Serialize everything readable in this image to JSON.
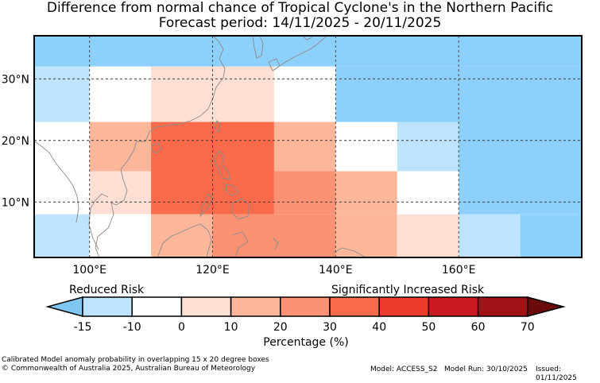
{
  "title": {
    "line1": "Difference from normal chance of Tropical Cyclone's in the Northern Pacific",
    "line2": "Forecast period: 14/11/2025 - 20/11/2025"
  },
  "map": {
    "region": "Northern Pacific",
    "lon_range": [
      91,
      180
    ],
    "lat_range": [
      1,
      37
    ],
    "lon_ticks": [
      {
        "value": 100,
        "label": "100°E"
      },
      {
        "value": 120,
        "label": "120°E"
      },
      {
        "value": 140,
        "label": "140°E"
      },
      {
        "value": 160,
        "label": "160°E"
      }
    ],
    "lat_ticks": [
      {
        "value": 30,
        "label": "30°N"
      },
      {
        "value": 20,
        "label": "20°N"
      },
      {
        "value": 10,
        "label": "10°N"
      }
    ],
    "anomaly_boxes": [
      {
        "lon": [
          91,
          180
        ],
        "lat": [
          32,
          37
        ],
        "category": "-25"
      },
      {
        "lon": [
          91,
          100
        ],
        "lat": [
          23,
          32
        ],
        "category": "-15"
      },
      {
        "lon": [
          100,
          110
        ],
        "lat": [
          23,
          32
        ],
        "category": "0"
      },
      {
        "lon": [
          110,
          130
        ],
        "lat": [
          23,
          32
        ],
        "category": "0-10"
      },
      {
        "lon": [
          130,
          140
        ],
        "lat": [
          23,
          32
        ],
        "category": "0"
      },
      {
        "lon": [
          140,
          180
        ],
        "lat": [
          23,
          32
        ],
        "category": "-25"
      },
      {
        "lon": [
          91,
          100
        ],
        "lat": [
          8,
          23
        ],
        "category": "0"
      },
      {
        "lon": [
          100,
          110
        ],
        "lat": [
          15,
          23
        ],
        "category": "10-20"
      },
      {
        "lon": [
          100,
          110
        ],
        "lat": [
          8,
          15
        ],
        "category": "0-10"
      },
      {
        "lon": [
          110,
          130
        ],
        "lat": [
          8,
          23
        ],
        "category": "30-40"
      },
      {
        "lon": [
          130,
          140
        ],
        "lat": [
          15,
          23
        ],
        "category": "10-20"
      },
      {
        "lon": [
          130,
          140
        ],
        "lat": [
          8,
          15
        ],
        "category": "20-30"
      },
      {
        "lon": [
          140,
          150
        ],
        "lat": [
          15,
          23
        ],
        "category": "0"
      },
      {
        "lon": [
          140,
          150
        ],
        "lat": [
          8,
          15
        ],
        "category": "10-20"
      },
      {
        "lon": [
          150,
          160
        ],
        "lat": [
          15,
          23
        ],
        "category": "-15"
      },
      {
        "lon": [
          150,
          160
        ],
        "lat": [
          8,
          15
        ],
        "category": "0"
      },
      {
        "lon": [
          160,
          180
        ],
        "lat": [
          8,
          23
        ],
        "category": "-25"
      },
      {
        "lon": [
          91,
          100
        ],
        "lat": [
          1,
          8
        ],
        "category": "-15"
      },
      {
        "lon": [
          100,
          110
        ],
        "lat": [
          1,
          8
        ],
        "category": "0"
      },
      {
        "lon": [
          110,
          120
        ],
        "lat": [
          1,
          8
        ],
        "category": "10-20"
      },
      {
        "lon": [
          120,
          140
        ],
        "lat": [
          1,
          8
        ],
        "category": "20-30"
      },
      {
        "lon": [
          140,
          150
        ],
        "lat": [
          1,
          8
        ],
        "category": "10-20"
      },
      {
        "lon": [
          150,
          160
        ],
        "lat": [
          1,
          8
        ],
        "category": "0-10"
      },
      {
        "lon": [
          160,
          170
        ],
        "lat": [
          1,
          8
        ],
        "category": "-15"
      },
      {
        "lon": [
          170,
          180
        ],
        "lat": [
          1,
          8
        ],
        "category": "-25"
      }
    ],
    "coast_color": "#8a8a8a"
  },
  "colorbar": {
    "reduced_label": "Reduced Risk",
    "increased_label": "Significantly Increased Risk",
    "low_extend_color": "#7fc7f2",
    "high_extend_color": "#6b0a0a",
    "colors": [
      "#bde4fc",
      "#ffffff",
      "#fde0d3",
      "#fcb79b",
      "#fc9274",
      "#f96b4b",
      "#ee3b2d",
      "#c91b1f",
      "#a11217"
    ],
    "ticks": [
      "-15",
      "-10",
      "0",
      "10",
      "20",
      "30",
      "40",
      "50",
      "60",
      "70"
    ],
    "axis_label": "Percentage (%)"
  },
  "palette": {
    "-25": "#8dd0fc",
    "-15": "#bde4fc",
    "0": "#ffffff",
    "0-10": "#fde0d3",
    "10-20": "#fcb79b",
    "20-30": "#fc9274",
    "30-40": "#f96b4b"
  },
  "footer": {
    "note": "Calibrated Model anomaly probability in overlapping 15 x 20 degree boxes",
    "copyright": "© Commonwealth of Australia 2025, Australian Bureau of Meteorology",
    "model": "Model: ACCESS_S2",
    "model_run": "Model Run: 30/10/2025",
    "issued": "Issued: 01/11/2025"
  }
}
